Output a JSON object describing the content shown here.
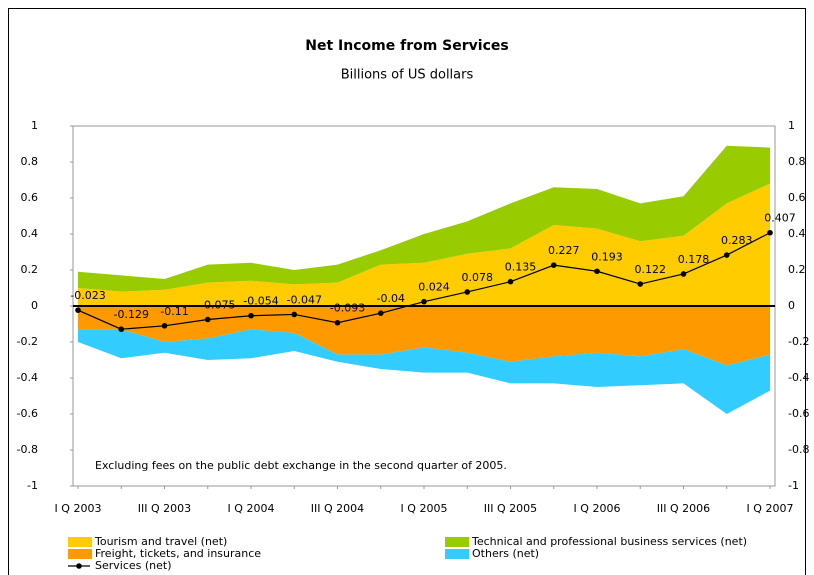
{
  "chart_data": {
    "type": "area",
    "title": "Net Income from Services",
    "subtitle": "Billions of US dollars",
    "annotation": "Excluding fees on the public debt exchange in the second quarter of 2005.",
    "categories": [
      "I Q 2003",
      null,
      "III Q 2003",
      null,
      "I Q 2004",
      null,
      "III Q 2004",
      null,
      "I Q 2005",
      null,
      "III Q 2005",
      null,
      "I Q 2006",
      null,
      "III Q 2006",
      null,
      "I Q 2007"
    ],
    "ylim": [
      -1,
      1
    ],
    "yticks": [
      -1,
      -0.8,
      -0.6,
      -0.4,
      -0.2,
      0,
      0.2,
      0.4,
      0.6,
      0.8,
      1
    ],
    "y2lim": [
      -1,
      1
    ],
    "y2ticks": [
      -1,
      -0.8,
      -0.6,
      -0.4,
      -0.2,
      0,
      0.2,
      0.4,
      0.6,
      0.8,
      1
    ],
    "stacked": true,
    "series": [
      {
        "name": "Tourism and travel (net)",
        "type": "area",
        "color": "#ffcc00",
        "values": [
          0.1,
          0.08,
          0.09,
          0.13,
          0.14,
          0.12,
          0.13,
          0.23,
          0.24,
          0.29,
          0.32,
          0.45,
          0.43,
          0.36,
          0.39,
          0.57,
          0.68
        ]
      },
      {
        "name": "Technical and professional business services (net)",
        "type": "area",
        "color": "#99cc00",
        "values": [
          0.09,
          0.09,
          0.06,
          0.1,
          0.1,
          0.08,
          0.1,
          0.08,
          0.16,
          0.18,
          0.25,
          0.21,
          0.22,
          0.21,
          0.22,
          0.32,
          0.2
        ]
      },
      {
        "name": "Freight, tickets, and insurance",
        "type": "area",
        "color": "#ff9900",
        "values": [
          -0.13,
          -0.13,
          -0.2,
          -0.18,
          -0.13,
          -0.15,
          -0.27,
          -0.27,
          -0.23,
          -0.26,
          -0.31,
          -0.28,
          -0.26,
          -0.28,
          -0.24,
          -0.33,
          -0.27
        ]
      },
      {
        "name": "Others (net)",
        "type": "area",
        "color": "#33ccff",
        "values": [
          -0.07,
          -0.16,
          -0.06,
          -0.12,
          -0.16,
          -0.1,
          -0.04,
          -0.08,
          -0.14,
          -0.11,
          -0.12,
          -0.15,
          -0.19,
          -0.16,
          -0.19,
          -0.27,
          -0.2
        ]
      },
      {
        "name": "Services (net)",
        "type": "line",
        "color": "#000000",
        "values": [
          -0.023,
          -0.129,
          -0.11,
          -0.075,
          -0.054,
          -0.047,
          -0.093,
          -0.04,
          0.024,
          0.078,
          0.135,
          0.227,
          0.193,
          0.122,
          0.178,
          0.283,
          0.407
        ]
      }
    ]
  }
}
